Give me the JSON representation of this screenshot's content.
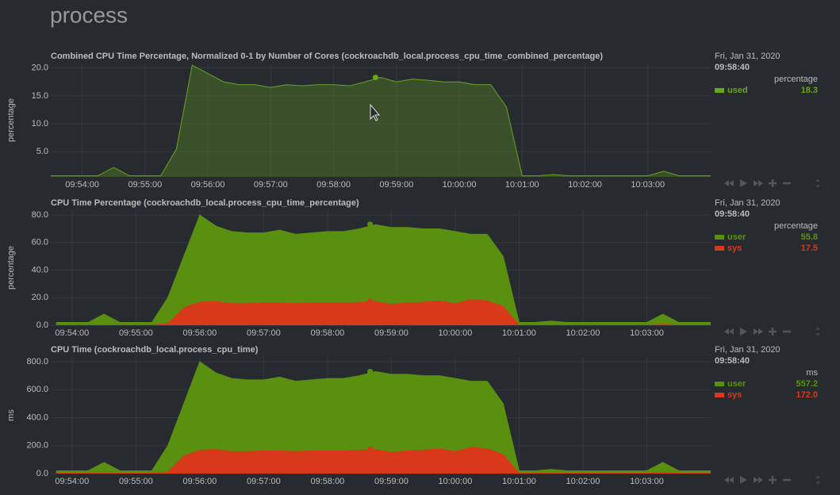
{
  "page_title": "process",
  "chart_data": [
    {
      "type": "area",
      "title": "Combined CPU Time Percentage, Normalized 0-1 by Number of Cores (cockroachdb_local.process_cpu_time_combined_percentage)",
      "ylabel": "percentage",
      "stacked": false,
      "grid": true,
      "x": [
        "09:53:30",
        "09:53:45",
        "09:54:00",
        "09:54:15",
        "09:54:30",
        "09:54:45",
        "09:55:00",
        "09:55:15",
        "09:55:30",
        "09:55:45",
        "09:56:00",
        "09:56:15",
        "09:56:30",
        "09:56:45",
        "09:57:00",
        "09:57:15",
        "09:57:30",
        "09:57:45",
        "09:58:00",
        "09:58:15",
        "09:58:30",
        "09:58:45",
        "09:59:00",
        "09:59:15",
        "09:59:30",
        "09:59:45",
        "10:00:00",
        "10:00:15",
        "10:00:30",
        "10:00:45",
        "10:01:00",
        "10:01:15",
        "10:01:30",
        "10:01:45",
        "10:02:00",
        "10:02:15",
        "10:02:30",
        "10:02:45",
        "10:03:00",
        "10:03:15",
        "10:03:30",
        "10:03:45",
        "10:04:00"
      ],
      "xlim": [
        "09:53:30",
        "10:04:00"
      ],
      "xticks": [
        "09:54:00",
        "09:55:00",
        "09:56:00",
        "09:57:00",
        "09:58:00",
        "09:59:00",
        "10:00:00",
        "10:01:00",
        "10:02:00",
        "10:03:00"
      ],
      "ylim": [
        0.5,
        20.8
      ],
      "yticks": [
        {
          "value": 5,
          "label": "5.0"
        },
        {
          "value": 10,
          "label": "10.0"
        },
        {
          "value": 15,
          "label": "15.0"
        },
        {
          "value": 20,
          "label": "20.0"
        }
      ],
      "series": [
        {
          "name": "used",
          "color": "#66a61e",
          "values": [
            0.7,
            0.7,
            0.7,
            0.7,
            2.2,
            0.7,
            0.7,
            0.7,
            5.5,
            20.5,
            19.0,
            17.5,
            17.0,
            17.0,
            16.5,
            17.0,
            16.8,
            17.0,
            17.0,
            16.8,
            17.5,
            18.3,
            17.5,
            18.0,
            17.8,
            17.5,
            17.5,
            17.0,
            17.0,
            13.0,
            0.7,
            0.7,
            0.9,
            0.7,
            0.7,
            0.7,
            0.7,
            0.7,
            0.7,
            1.5,
            0.7,
            0.7,
            0.7
          ]
        }
      ],
      "hover": {
        "date": "Fri, Jan 31, 2020",
        "time": "09:58:40",
        "unit": "percentage",
        "values": [
          18.3
        ]
      }
    },
    {
      "type": "area",
      "title": "CPU Time Percentage (cockroachdb_local.process_cpu_time_percentage)",
      "ylabel": "percentage",
      "stacked": true,
      "grid": true,
      "x": [
        "09:53:45",
        "09:54:00",
        "09:54:15",
        "09:54:30",
        "09:54:45",
        "09:55:00",
        "09:55:15",
        "09:55:30",
        "09:55:45",
        "09:56:00",
        "09:56:15",
        "09:56:30",
        "09:56:45",
        "09:57:00",
        "09:57:15",
        "09:57:30",
        "09:57:45",
        "09:58:00",
        "09:58:15",
        "09:58:30",
        "09:58:45",
        "09:59:00",
        "09:59:15",
        "09:59:30",
        "09:59:45",
        "10:00:00",
        "10:00:15",
        "10:00:30",
        "10:00:45",
        "10:01:00",
        "10:01:15",
        "10:01:30",
        "10:01:45",
        "10:02:00",
        "10:02:15",
        "10:02:30",
        "10:02:45",
        "10:03:00",
        "10:03:15",
        "10:03:30",
        "10:03:45",
        "10:04:00"
      ],
      "xlim": [
        "09:53:40",
        "10:04:00"
      ],
      "xticks": [
        "09:54:00",
        "09:55:00",
        "09:56:00",
        "09:57:00",
        "09:58:00",
        "09:59:00",
        "10:00:00",
        "10:01:00",
        "10:02:00",
        "10:03:00"
      ],
      "ylim": [
        0,
        83.5
      ],
      "yticks": [
        {
          "value": 0,
          "label": "0.0"
        },
        {
          "value": 20,
          "label": "20.0"
        },
        {
          "value": 40,
          "label": "40.0"
        },
        {
          "value": 60,
          "label": "60.0"
        },
        {
          "value": 80,
          "label": "80.0"
        }
      ],
      "series": [
        {
          "name": "user",
          "color": "#5a9010",
          "values": [
            1.5,
            1.5,
            1.5,
            7.5,
            1.5,
            1.5,
            1.5,
            18.5,
            37,
            63,
            54.5,
            52,
            51,
            50.5,
            52.5,
            50,
            50.5,
            51.5,
            51.5,
            53,
            55.5,
            55.5,
            54.5,
            53,
            52,
            52,
            47,
            48,
            36,
            1.5,
            1.5,
            2.5,
            1.5,
            1.5,
            1.5,
            1.5,
            1.5,
            1.5,
            7,
            1.5,
            1.5,
            1.5
          ]
        },
        {
          "name": "sys",
          "color": "#d9391b",
          "values": [
            0.5,
            0.5,
            0.5,
            0.5,
            0.5,
            0.5,
            0.5,
            1.5,
            13,
            17,
            17.5,
            16,
            16,
            16.5,
            16.5,
            16,
            16.5,
            16.5,
            16.5,
            17,
            17.5,
            15.5,
            16.5,
            17,
            18,
            16,
            19,
            18,
            14,
            0.5,
            0.5,
            0.5,
            0.5,
            0.5,
            0.5,
            0.5,
            0.5,
            0.5,
            1,
            0.5,
            0.5,
            0.5
          ]
        }
      ],
      "hover": {
        "date": "Fri, Jan 31, 2020",
        "time": "09:58:40",
        "unit": "percentage",
        "values": [
          55.8,
          17.5
        ]
      }
    },
    {
      "type": "area",
      "title": "CPU Time (cockroachdb_local.process_cpu_time)",
      "ylabel": "ms",
      "stacked": true,
      "grid": true,
      "x": [
        "09:53:45",
        "09:54:00",
        "09:54:15",
        "09:54:30",
        "09:54:45",
        "09:55:00",
        "09:55:15",
        "09:55:30",
        "09:55:45",
        "09:56:00",
        "09:56:15",
        "09:56:30",
        "09:56:45",
        "09:57:00",
        "09:57:15",
        "09:57:30",
        "09:57:45",
        "09:58:00",
        "09:58:15",
        "09:58:30",
        "09:58:45",
        "09:59:00",
        "09:59:15",
        "09:59:30",
        "09:59:45",
        "10:00:00",
        "10:00:15",
        "10:00:30",
        "10:00:45",
        "10:01:00",
        "10:01:15",
        "10:01:30",
        "10:01:45",
        "10:02:00",
        "10:02:15",
        "10:02:30",
        "10:02:45",
        "10:03:00",
        "10:03:15",
        "10:03:30",
        "10:03:45",
        "10:04:00"
      ],
      "xlim": [
        "09:53:40",
        "10:04:00"
      ],
      "xticks": [
        "09:54:00",
        "09:55:00",
        "09:56:00",
        "09:57:00",
        "09:58:00",
        "09:59:00",
        "10:00:00",
        "10:01:00",
        "10:02:00",
        "10:03:00"
      ],
      "ylim": [
        0,
        834
      ],
      "yticks": [
        {
          "value": 0,
          "label": "0.0"
        },
        {
          "value": 200,
          "label": "200.0"
        },
        {
          "value": 400,
          "label": "400.0"
        },
        {
          "value": 600,
          "label": "600.0"
        },
        {
          "value": 800,
          "label": "800.0"
        }
      ],
      "series": [
        {
          "name": "user",
          "color": "#5a9010",
          "values": [
            15,
            15,
            15,
            75,
            15,
            15,
            15,
            185,
            370,
            630,
            545,
            520,
            510,
            505,
            525,
            500,
            505,
            515,
            515,
            530,
            555,
            555,
            545,
            530,
            520,
            520,
            470,
            480,
            360,
            15,
            15,
            25,
            15,
            15,
            15,
            15,
            15,
            15,
            70,
            15,
            15,
            15
          ]
        },
        {
          "name": "sys",
          "color": "#d9391b",
          "values": [
            5,
            5,
            5,
            5,
            5,
            5,
            5,
            15,
            130,
            170,
            175,
            160,
            160,
            165,
            165,
            160,
            165,
            165,
            165,
            170,
            175,
            155,
            165,
            170,
            180,
            160,
            190,
            180,
            140,
            5,
            5,
            5,
            5,
            5,
            5,
            5,
            5,
            5,
            10,
            5,
            5,
            5
          ]
        }
      ],
      "hover": {
        "date": "Fri, Jan 31, 2020",
        "time": "09:58:40",
        "unit": "ms",
        "values": [
          557.2,
          {
            "value": 172,
            "label": "172.0"
          }
        ]
      }
    }
  ]
}
